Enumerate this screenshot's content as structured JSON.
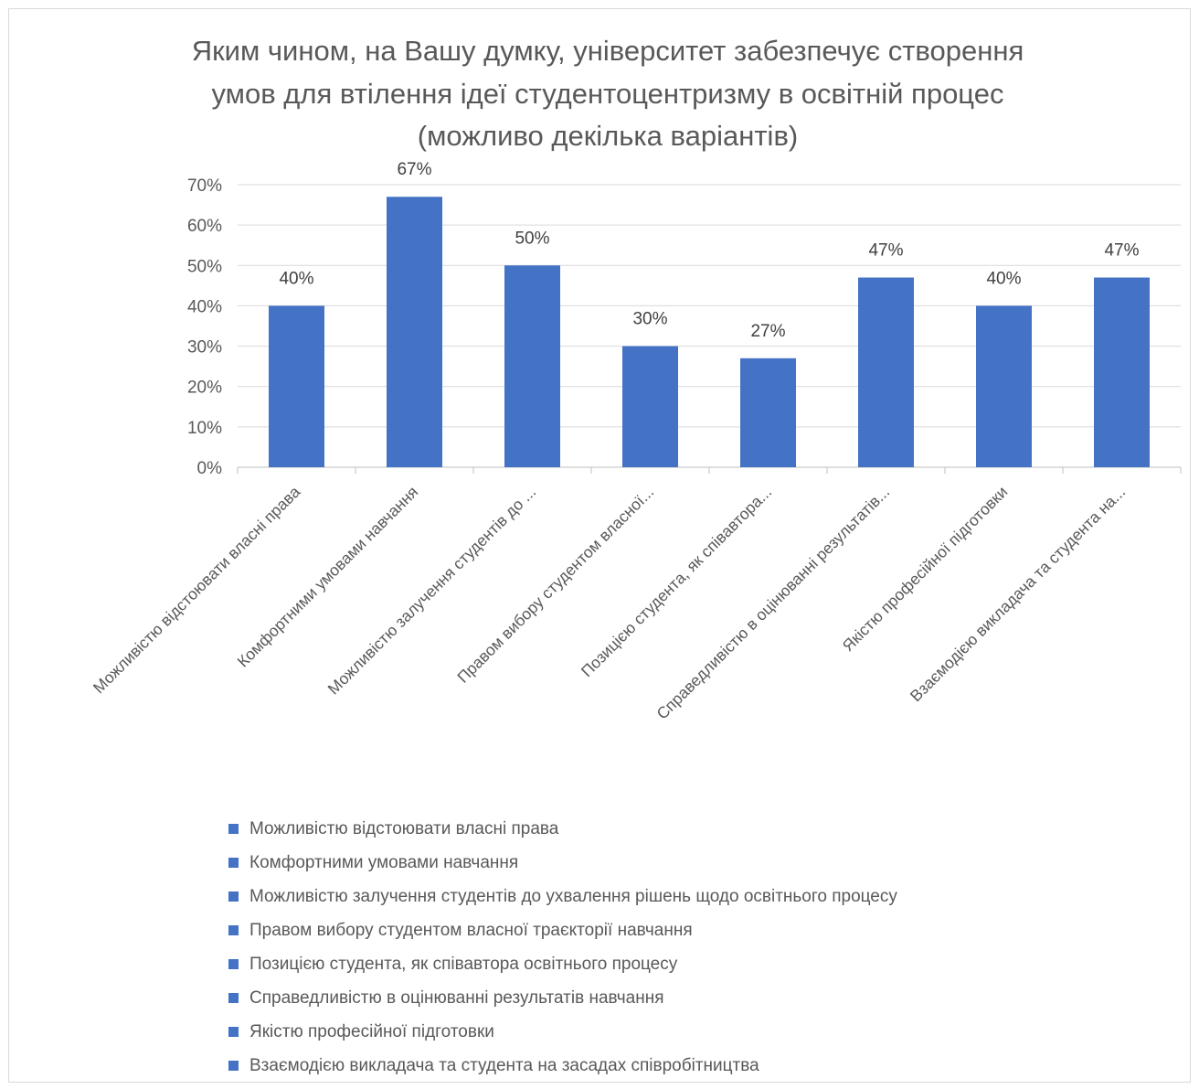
{
  "chart_data": {
    "type": "bar",
    "title_lines": [
      "Яким чином, на Вашу думку, університет забезпечує створення",
      "умов для втілення ідеї студентоцентризму в освітній процес",
      "(можливо декілька варіантів)"
    ],
    "categories": [
      "Можливістю відстоювати власні права",
      "Комфортними умовами навчання",
      "Можливістю залучення студентів до ухвалення рішень щодо освітнього процесу",
      "Правом вибору студентом власної траєкторії навчання",
      "Позицією студента, як співавтора освітнього процесу",
      "Справедливістю в оцінюванні результатів навчання",
      "Якістю професійної підготовки",
      "Взаємодією викладача та студента на засадах співробітництва"
    ],
    "axis_category_labels": [
      "Можливістю відстоювати власні права",
      "Комфортними умовами навчання",
      "Можливістю залучення студентів до ...",
      "Правом вибору студентом власної...",
      "Позицією студента, як співавтора...",
      "Справедливістю в оцінюванні результатів...",
      "Якістю професійної підготовки",
      "Взаємодією викладача та студента на..."
    ],
    "values": [
      40,
      67,
      50,
      30,
      27,
      47,
      40,
      47
    ],
    "data_labels": [
      "40%",
      "67%",
      "50%",
      "30%",
      "27%",
      "47%",
      "40%",
      "47%"
    ],
    "ylim": [
      0,
      70
    ],
    "yticks": [
      0,
      10,
      20,
      30,
      40,
      50,
      60,
      70
    ],
    "ytick_labels": [
      "0%",
      "10%",
      "20%",
      "30%",
      "40%",
      "50%",
      "60%",
      "70%"
    ],
    "xlabel": "",
    "ylabel": "",
    "grid": true,
    "legend_position": "bottom",
    "bar_color": "#4472c4"
  }
}
